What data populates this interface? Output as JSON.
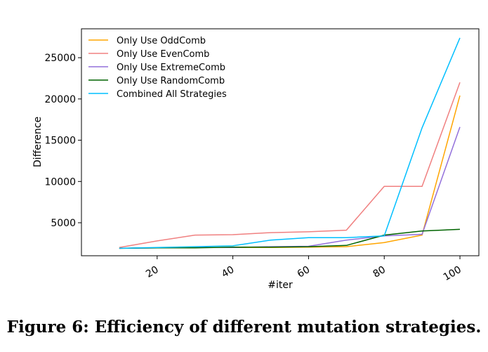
{
  "caption": "Figure 6: Efficiency of different mutation strategies.",
  "chart_data": {
    "type": "line",
    "xlabel": "#iter",
    "ylabel": "Difference",
    "xlim": [
      0,
      105
    ],
    "ylim": [
      1000,
      28500
    ],
    "x_ticks": [
      20,
      40,
      60,
      80,
      100
    ],
    "y_ticks": [
      5000,
      10000,
      15000,
      20000,
      25000
    ],
    "legend_position": "top-left",
    "grid": false,
    "x": [
      10,
      20,
      30,
      40,
      50,
      60,
      70,
      80,
      90,
      100
    ],
    "series": [
      {
        "name": "Only Use OddComb",
        "color": "#ffa500",
        "values": [
          1900,
          1950,
          2000,
          2000,
          2000,
          2050,
          2100,
          2600,
          3500,
          20400
        ]
      },
      {
        "name": "Only Use EvenComb",
        "color": "#f08080",
        "values": [
          2000,
          2800,
          3500,
          3550,
          3800,
          3900,
          4100,
          9400,
          9400,
          22000
        ]
      },
      {
        "name": "Only Use ExtremeComb",
        "color": "#9370db",
        "values": [
          1900,
          1950,
          2000,
          2000,
          2100,
          2150,
          2900,
          3400,
          3600,
          16600
        ]
      },
      {
        "name": "Only Use RandomComb",
        "color": "#006400",
        "values": [
          1900,
          1950,
          1950,
          2050,
          2050,
          2100,
          2250,
          3500,
          4000,
          4200
        ]
      },
      {
        "name": "Combined All Strategies",
        "color": "#00bfff",
        "values": [
          1900,
          2000,
          2100,
          2200,
          2900,
          3200,
          3200,
          3400,
          16500,
          27400
        ]
      }
    ]
  }
}
